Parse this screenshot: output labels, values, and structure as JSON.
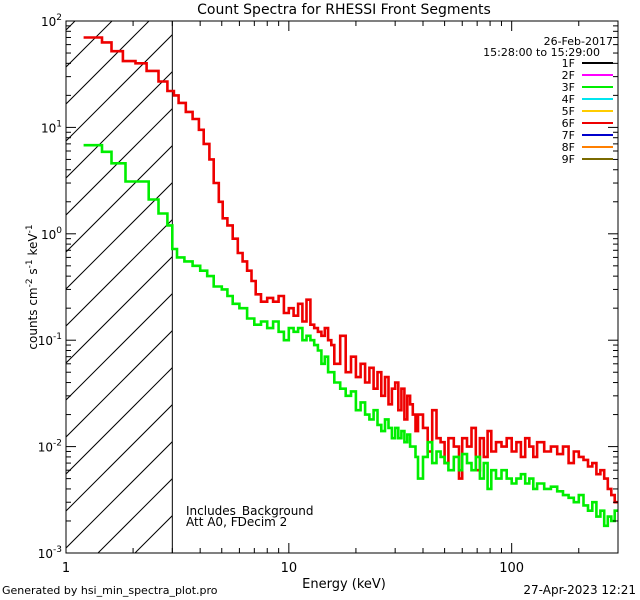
{
  "chart_data": {
    "type": "line",
    "title": "Count Spectra for RHESSI Front Segments",
    "xlabel": "Energy (keV)",
    "ylabel": "counts cm",
    "ylabel_parts": {
      "base": "counts cm",
      "sup1": "-2",
      "mid1": " s",
      "sup2": "-1",
      "mid2": " keV",
      "sup3": "-1"
    },
    "x_scale": "log",
    "y_scale": "log",
    "xlim": [
      1,
      300
    ],
    "ylim": [
      0.001,
      100
    ],
    "x_ticks": [
      {
        "value": 10,
        "label": "10"
      },
      {
        "value": 100,
        "label": "100"
      }
    ],
    "x_edge_label": "1",
    "y_ticks": [
      {
        "value": 0.001,
        "base": "10",
        "exp": "-3"
      },
      {
        "value": 0.01,
        "base": "10",
        "exp": "-2"
      },
      {
        "value": 0.1,
        "base": "10",
        "exp": "-1"
      },
      {
        "value": 1,
        "base": "10",
        "exp": "0"
      },
      {
        "value": 10,
        "base": "10",
        "exp": "1"
      },
      {
        "value": 100,
        "base": "10",
        "exp": "2"
      }
    ],
    "shaded_region": {
      "from": 1,
      "to": 3,
      "style": "hatched"
    },
    "date": "26-Feb-2017",
    "time_range": "15:28:00 to 15:29:00",
    "legend": [
      {
        "label": "1F",
        "color": "#000000"
      },
      {
        "label": "2F",
        "color": "#ff00ff"
      },
      {
        "label": "3F",
        "color": "#00ee00"
      },
      {
        "label": "4F",
        "color": "#00e5ee"
      },
      {
        "label": "5F",
        "color": "#ffcc00"
      },
      {
        "label": "6F",
        "color": "#ee0000"
      },
      {
        "label": "7F",
        "color": "#0000cc"
      },
      {
        "label": "8F",
        "color": "#ff7f00"
      },
      {
        "label": "9F",
        "color": "#7a6a00"
      }
    ],
    "annotations": [
      "Includes_Background",
      "Att A0, FDecim 2"
    ],
    "series": [
      {
        "name": "6F",
        "color": "#ee0000",
        "points": [
          [
            1.2,
            70
          ],
          [
            1.45,
            63
          ],
          [
            1.6,
            52
          ],
          [
            1.8,
            42
          ],
          [
            2.05,
            40
          ],
          [
            2.3,
            34
          ],
          [
            2.6,
            27
          ],
          [
            2.85,
            22
          ],
          [
            3.05,
            20
          ],
          [
            3.2,
            17
          ],
          [
            3.45,
            14
          ],
          [
            3.7,
            12
          ],
          [
            3.95,
            9.5
          ],
          [
            4.15,
            7
          ],
          [
            4.4,
            5
          ],
          [
            4.6,
            3
          ],
          [
            4.85,
            2
          ],
          [
            5.05,
            1.4
          ],
          [
            5.3,
            1.2
          ],
          [
            5.6,
            0.9
          ],
          [
            5.9,
            0.66
          ],
          [
            6.2,
            0.55
          ],
          [
            6.5,
            0.45
          ],
          [
            6.8,
            0.36
          ],
          [
            7.1,
            0.27
          ],
          [
            7.5,
            0.23
          ],
          [
            8.0,
            0.25
          ],
          [
            8.5,
            0.23
          ],
          [
            9.0,
            0.26
          ],
          [
            9.5,
            0.18
          ],
          [
            10,
            0.2
          ],
          [
            10.5,
            0.17
          ],
          [
            11,
            0.22
          ],
          [
            11.5,
            0.15
          ],
          [
            12,
            0.24
          ],
          [
            12.5,
            0.14
          ],
          [
            13,
            0.13
          ],
          [
            13.5,
            0.12
          ],
          [
            14,
            0.11
          ],
          [
            14.5,
            0.13
          ],
          [
            15,
            0.1
          ],
          [
            15.5,
            0.09
          ],
          [
            16,
            0.06
          ],
          [
            17,
            0.11
          ],
          [
            18,
            0.05
          ],
          [
            19,
            0.07
          ],
          [
            20,
            0.045
          ],
          [
            21,
            0.06
          ],
          [
            22,
            0.04
          ],
          [
            23,
            0.055
          ],
          [
            24,
            0.035
          ],
          [
            25,
            0.05
          ],
          [
            26,
            0.03
          ],
          [
            27,
            0.045
          ],
          [
            28,
            0.025
          ],
          [
            29,
            0.035
          ],
          [
            30,
            0.04
          ],
          [
            31,
            0.022
          ],
          [
            32,
            0.035
          ],
          [
            33,
            0.018
          ],
          [
            34,
            0.03
          ],
          [
            35,
            0.025
          ],
          [
            36,
            0.02
          ],
          [
            37,
            0.014
          ],
          [
            38,
            0.02
          ],
          [
            40,
            0.015
          ],
          [
            42,
            0.009
          ],
          [
            44,
            0.022
          ],
          [
            46,
            0.012
          ],
          [
            48,
            0.011
          ],
          [
            50,
            0.007
          ],
          [
            52,
            0.012
          ],
          [
            55,
            0.01
          ],
          [
            58,
            0.005
          ],
          [
            60,
            0.012
          ],
          [
            63,
            0.01
          ],
          [
            66,
            0.015
          ],
          [
            69,
            0.006
          ],
          [
            72,
            0.012
          ],
          [
            75,
            0.008
          ],
          [
            78,
            0.014
          ],
          [
            81,
            0.009
          ],
          [
            85,
            0.011
          ],
          [
            90,
            0.01
          ],
          [
            95,
            0.012
          ],
          [
            100,
            0.009
          ],
          [
            105,
            0.011
          ],
          [
            110,
            0.008
          ],
          [
            115,
            0.012
          ],
          [
            120,
            0.01
          ],
          [
            125,
            0.008
          ],
          [
            130,
            0.011
          ],
          [
            140,
            0.009
          ],
          [
            150,
            0.01
          ],
          [
            160,
            0.0085
          ],
          [
            170,
            0.01
          ],
          [
            180,
            0.007
          ],
          [
            190,
            0.009
          ],
          [
            200,
            0.008
          ],
          [
            210,
            0.0075
          ],
          [
            220,
            0.0065
          ],
          [
            230,
            0.007
          ],
          [
            240,
            0.0055
          ],
          [
            250,
            0.006
          ],
          [
            260,
            0.005
          ],
          [
            270,
            0.004
          ],
          [
            280,
            0.0035
          ],
          [
            290,
            0.003
          ]
        ]
      },
      {
        "name": "3F",
        "color": "#00ee00",
        "points": [
          [
            1.2,
            6.8
          ],
          [
            1.45,
            5.9
          ],
          [
            1.6,
            4.6
          ],
          [
            1.85,
            3.1
          ],
          [
            2.05,
            3.1
          ],
          [
            2.35,
            2.1
          ],
          [
            2.6,
            1.55
          ],
          [
            2.85,
            1.2
          ],
          [
            3.0,
            0.72
          ],
          [
            3.15,
            0.6
          ],
          [
            3.4,
            0.55
          ],
          [
            3.7,
            0.5
          ],
          [
            4.0,
            0.45
          ],
          [
            4.3,
            0.4
          ],
          [
            4.6,
            0.32
          ],
          [
            5.0,
            0.3
          ],
          [
            5.3,
            0.26
          ],
          [
            5.6,
            0.22
          ],
          [
            6.0,
            0.2
          ],
          [
            6.5,
            0.16
          ],
          [
            7.0,
            0.14
          ],
          [
            7.5,
            0.15
          ],
          [
            8.0,
            0.13
          ],
          [
            8.5,
            0.15
          ],
          [
            9.0,
            0.12
          ],
          [
            9.5,
            0.1
          ],
          [
            10,
            0.13
          ],
          [
            10.5,
            0.12
          ],
          [
            11,
            0.13
          ],
          [
            11.5,
            0.1
          ],
          [
            12,
            0.11
          ],
          [
            12.5,
            0.1
          ],
          [
            13,
            0.09
          ],
          [
            13.5,
            0.08
          ],
          [
            14,
            0.06
          ],
          [
            14.5,
            0.07
          ],
          [
            15,
            0.05
          ],
          [
            16,
            0.04
          ],
          [
            17,
            0.035
          ],
          [
            18,
            0.03
          ],
          [
            19,
            0.033
          ],
          [
            20,
            0.022
          ],
          [
            21,
            0.026
          ],
          [
            22,
            0.02
          ],
          [
            23,
            0.018
          ],
          [
            24,
            0.022
          ],
          [
            25,
            0.016
          ],
          [
            26,
            0.014
          ],
          [
            27,
            0.018
          ],
          [
            28,
            0.015
          ],
          [
            29,
            0.012
          ],
          [
            30,
            0.015
          ],
          [
            31,
            0.012
          ],
          [
            32,
            0.014
          ],
          [
            33,
            0.011
          ],
          [
            34,
            0.013
          ],
          [
            35,
            0.01
          ],
          [
            36,
            0.01
          ],
          [
            37,
            0.008
          ],
          [
            38,
            0.005
          ],
          [
            40,
            0.008
          ],
          [
            42,
            0.011
          ],
          [
            44,
            0.007
          ],
          [
            46,
            0.009
          ],
          [
            48,
            0.008
          ],
          [
            50,
            0.007
          ],
          [
            52,
            0.006
          ],
          [
            55,
            0.008
          ],
          [
            58,
            0.006
          ],
          [
            60,
            0.0085
          ],
          [
            63,
            0.007
          ],
          [
            66,
            0.006
          ],
          [
            69,
            0.008
          ],
          [
            72,
            0.005
          ],
          [
            75,
            0.007
          ],
          [
            78,
            0.004
          ],
          [
            81,
            0.006
          ],
          [
            85,
            0.005
          ],
          [
            90,
            0.006
          ],
          [
            95,
            0.005
          ],
          [
            100,
            0.0045
          ],
          [
            105,
            0.005
          ],
          [
            110,
            0.0055
          ],
          [
            115,
            0.0045
          ],
          [
            120,
            0.005
          ],
          [
            125,
            0.004
          ],
          [
            130,
            0.0045
          ],
          [
            140,
            0.004
          ],
          [
            150,
            0.0042
          ],
          [
            160,
            0.0038
          ],
          [
            170,
            0.0035
          ],
          [
            180,
            0.0033
          ],
          [
            190,
            0.003
          ],
          [
            200,
            0.0035
          ],
          [
            210,
            0.0028
          ],
          [
            220,
            0.0025
          ],
          [
            230,
            0.003
          ],
          [
            240,
            0.0022
          ],
          [
            250,
            0.0025
          ],
          [
            260,
            0.0018
          ],
          [
            270,
            0.0022
          ],
          [
            280,
            0.002
          ],
          [
            290,
            0.0025
          ]
        ]
      }
    ]
  },
  "footer": {
    "generated_by": "Generated by hsi_min_spectra_plot.pro",
    "timestamp": "27-Apr-2023 12:21"
  }
}
